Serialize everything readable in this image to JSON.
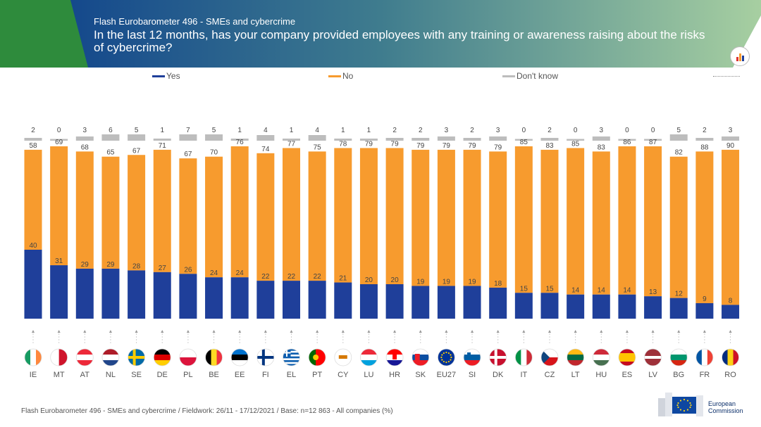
{
  "header": {
    "kicker": "Flash Eurobarometer 496 - SMEs and cybercrime",
    "title": "In the last 12 months, has your company provided employees with any training or awareness raising about the risks of cybercrime?"
  },
  "legend": [
    {
      "label": "Yes",
      "color": "#1f3f9a"
    },
    {
      "label": "No",
      "color": "#f79b2e"
    },
    {
      "label": "Don't know",
      "color": "#bdbdbd"
    }
  ],
  "chart_data": {
    "type": "bar",
    "stacked": true,
    "categories": [
      "IE",
      "MT",
      "AT",
      "NL",
      "SE",
      "DE",
      "PL",
      "BE",
      "EE",
      "FI",
      "EL",
      "PT",
      "CY",
      "LU",
      "HR",
      "SK",
      "EU27",
      "SI",
      "DK",
      "IT",
      "CZ",
      "LT",
      "HU",
      "ES",
      "LV",
      "BG",
      "FR",
      "RO"
    ],
    "series": [
      {
        "name": "Yes",
        "color": "#1f3f9a",
        "values": [
          40,
          31,
          29,
          29,
          28,
          27,
          26,
          24,
          24,
          22,
          22,
          22,
          21,
          20,
          20,
          19,
          19,
          19,
          18,
          15,
          15,
          14,
          14,
          14,
          13,
          12,
          9,
          8
        ]
      },
      {
        "name": "No",
        "color": "#f79b2e",
        "values": [
          58,
          69,
          68,
          65,
          67,
          71,
          67,
          70,
          76,
          74,
          77,
          75,
          78,
          79,
          79,
          79,
          79,
          79,
          79,
          85,
          83,
          85,
          83,
          86,
          87,
          82,
          88,
          90
        ]
      },
      {
        "name": "Don't know",
        "color": "#bdbdbd",
        "values": [
          2,
          0,
          3,
          6,
          5,
          1,
          7,
          5,
          1,
          4,
          1,
          4,
          1,
          1,
          2,
          2,
          3,
          2,
          3,
          0,
          2,
          0,
          3,
          0,
          0,
          5,
          2,
          3
        ]
      }
    ],
    "ylim": [
      0,
      100
    ],
    "legend_position": "top"
  },
  "footer": "Flash Eurobarometer 496 - SMEs and cybercrime   /   Fieldwork: 26/11 - 17/12/2021   /   Base: n=12 863 - All companies (%)",
  "logo": {
    "line1": "European",
    "line2": "Commission"
  }
}
